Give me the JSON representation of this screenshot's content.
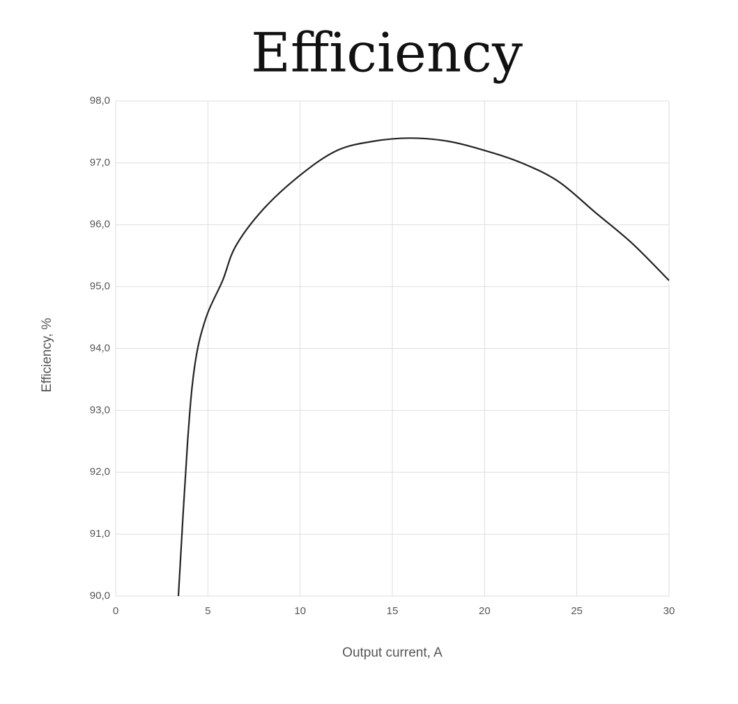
{
  "chart_data": {
    "type": "line",
    "title": "Efficiency",
    "x_label": "Output current, A",
    "y_label": "Efficiency, %",
    "grid": true,
    "xlim": [
      0,
      30
    ],
    "xticks": [
      0,
      5,
      10,
      15,
      20,
      25,
      30
    ],
    "ylim": [
      90,
      98
    ],
    "yticks": [
      {
        "value": 90,
        "label": "90,0"
      },
      {
        "value": 91,
        "label": "91,0"
      },
      {
        "value": 92,
        "label": "92,0"
      },
      {
        "value": 93,
        "label": "93,0"
      },
      {
        "value": 94,
        "label": "94,0"
      },
      {
        "value": 95,
        "label": "95,0"
      },
      {
        "value": 96,
        "label": "96,0"
      },
      {
        "value": 97,
        "label": "97,0"
      },
      {
        "value": 98,
        "label": "98,0"
      }
    ],
    "series": [
      {
        "color": "#222222",
        "x": [
          3.4,
          3.9,
          4.3,
          4.9,
          5.8,
          6.5,
          8,
          10,
          12,
          14,
          16,
          18,
          20,
          22,
          24,
          26,
          28,
          30
        ],
        "values": [
          90.0,
          92.5,
          93.75,
          94.5,
          95.1,
          95.65,
          96.25,
          96.8,
          97.2,
          97.35,
          97.4,
          97.35,
          97.2,
          97.0,
          96.7,
          96.2,
          95.7,
          95.1
        ]
      }
    ]
  }
}
